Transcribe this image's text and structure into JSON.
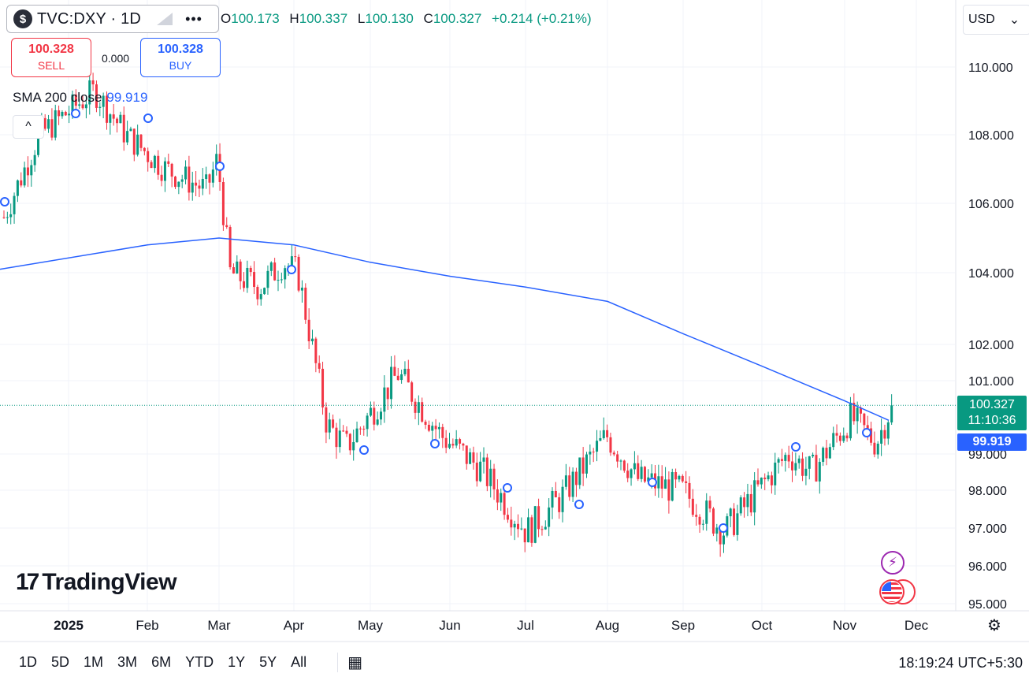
{
  "header": {
    "symbol_icon": "$",
    "symbol": "TVC:DXY · 1D",
    "more_icon": "•••",
    "ohlc": {
      "open_label": "O",
      "open": "100.173",
      "high_label": "H",
      "high": "100.337",
      "low_label": "L",
      "low": "100.130",
      "close_label": "C",
      "close": "100.327",
      "change": "+0.214 (+0.21%)"
    }
  },
  "trade": {
    "sell_price": "100.328",
    "sell_label": "SELL",
    "spread": "0.000",
    "buy_price": "100.328",
    "buy_label": "BUY"
  },
  "indicator": {
    "name": "SMA 200 close",
    "value": "99.919"
  },
  "collapse_icon": "^",
  "currency": {
    "value": "USD",
    "chevron": "⌄"
  },
  "logo": {
    "mark": "17",
    "text": "TradingView"
  },
  "price_tags": {
    "last_price": "100.327",
    "countdown": "11:10:36",
    "sma_value": "99.919"
  },
  "timeframes": [
    "1D",
    "5D",
    "1M",
    "3M",
    "6M",
    "YTD",
    "1Y",
    "5Y",
    "All"
  ],
  "calendar_icon": "📅",
  "clock": "18:19:24 UTC+5:30",
  "colors": {
    "up": "#089981",
    "down": "#f23645",
    "sma": "#2962ff",
    "grid": "#f0f3fa"
  },
  "chart_data": {
    "type": "candlestick",
    "title": "TVC:DXY · 1D",
    "y_ticks": [
      "110.000",
      "108.000",
      "106.000",
      "104.000",
      "102.000",
      "101.000",
      "100.327",
      "99.000",
      "98.000",
      "97.000",
      "96.000",
      "95.000"
    ],
    "x_ticks": [
      "2025",
      "Feb",
      "Mar",
      "Apr",
      "May",
      "Jun",
      "Jul",
      "Aug",
      "Sep",
      "Oct",
      "Nov",
      "Dec"
    ],
    "price_path": [
      [
        "Dec",
        105.6
      ],
      [
        "2025",
        108.0
      ],
      [
        "Jan-mid",
        109.3
      ],
      [
        "Feb",
        108.0
      ],
      [
        "Feb-mid",
        107.0
      ],
      [
        "Feb-end",
        106.4
      ],
      [
        "Mar-start",
        107.3
      ],
      [
        "Mar",
        104.0
      ],
      [
        "Mar-mid",
        103.6
      ],
      [
        "Mar-end",
        104.3
      ],
      [
        "Apr",
        104.0
      ],
      [
        "Apr-mid",
        99.8
      ],
      [
        "Apr-end",
        99.2
      ],
      [
        "May",
        100.1
      ],
      [
        "May-mid",
        101.2
      ],
      [
        "Jun",
        99.5
      ],
      [
        "Jun-mid",
        98.6
      ],
      [
        "Jul",
        96.9
      ],
      [
        "Jul-mid",
        97.8
      ],
      [
        "Aug",
        99.5
      ],
      [
        "Aug-mid",
        98.3
      ],
      [
        "Sep",
        98.0
      ],
      [
        "Sep-mid",
        96.9
      ],
      [
        "Oct",
        99.0
      ],
      [
        "Oct-mid",
        98.5
      ],
      [
        "Nov",
        100.0
      ],
      [
        "Nov-mid",
        99.3
      ],
      [
        "Nov-end",
        100.327
      ]
    ],
    "sma_path": [
      [
        "2025-start",
        104.1
      ],
      [
        "Feb",
        104.8
      ],
      [
        "Mar",
        105.0
      ],
      [
        "Apr",
        104.8
      ],
      [
        "May",
        104.3
      ],
      [
        "Jun",
        103.9
      ],
      [
        "Jul",
        103.6
      ],
      [
        "Aug",
        103.2
      ],
      [
        "Sep",
        102.3
      ],
      [
        "Oct",
        101.4
      ],
      [
        "Nov",
        100.45
      ],
      [
        "Nov-end",
        99.919
      ]
    ],
    "sma_name": "SMA 200 close",
    "last_price": 100.327,
    "sma_last": 99.919
  }
}
